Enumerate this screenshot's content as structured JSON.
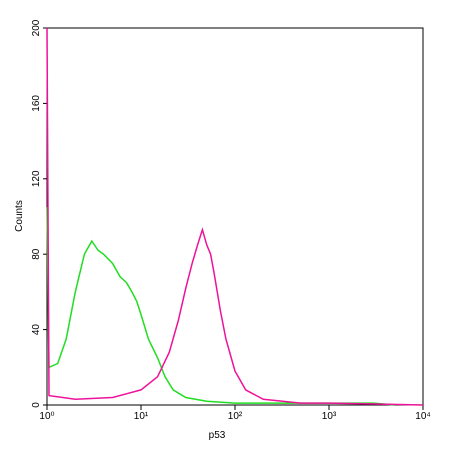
{
  "chart_data": {
    "type": "line",
    "x_label": "p53",
    "y_label": "Counts",
    "xscale": "log",
    "xlim": [
      1,
      10000
    ],
    "ylim": [
      0,
      200
    ],
    "xticks": [
      {
        "value": 1,
        "label": "10⁰"
      },
      {
        "value": 10,
        "label": "10¹"
      },
      {
        "value": 100,
        "label": "10²"
      },
      {
        "value": 1000,
        "label": "10³"
      },
      {
        "value": 10000,
        "label": "10⁴"
      }
    ],
    "yticks": [
      0,
      40,
      80,
      120,
      160,
      200
    ],
    "series": [
      {
        "color": "#22dd22",
        "x": [
          1,
          1.05,
          1.3,
          1.6,
          2,
          2.5,
          3,
          3.5,
          4,
          5,
          6,
          7,
          8,
          9,
          10,
          12,
          15,
          18,
          22,
          30,
          50,
          100,
          300,
          1000,
          3000,
          5000
        ],
        "values": [
          105,
          20,
          22,
          35,
          60,
          80,
          87,
          82,
          80,
          75,
          68,
          65,
          60,
          55,
          48,
          35,
          25,
          15,
          8,
          4,
          2,
          1,
          1,
          1,
          1,
          0
        ]
      },
      {
        "color": "#ee1199",
        "x": [
          1,
          1.05,
          2,
          5,
          10,
          15,
          20,
          25,
          30,
          35,
          40,
          45,
          50,
          55,
          60,
          70,
          80,
          100,
          130,
          200,
          500,
          1000,
          10000
        ],
        "values": [
          200,
          5,
          3,
          4,
          8,
          15,
          28,
          45,
          62,
          75,
          85,
          93,
          85,
          80,
          70,
          50,
          35,
          18,
          8,
          3,
          1,
          1,
          0
        ]
      }
    ]
  }
}
